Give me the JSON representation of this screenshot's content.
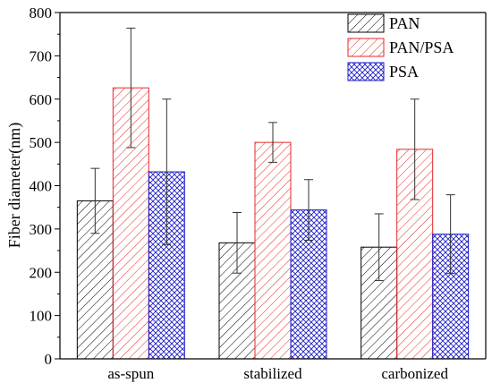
{
  "chart_data": {
    "type": "bar",
    "title": "",
    "xlabel": "",
    "ylabel": "Fiber diameter(nm)",
    "ylim": [
      0,
      800
    ],
    "yticks": [
      0,
      100,
      200,
      300,
      400,
      500,
      600,
      700,
      800
    ],
    "grid": false,
    "legend": "top-right",
    "categories": [
      "as-spun",
      "stabilized",
      "carbonized"
    ],
    "series": [
      {
        "name": "PAN",
        "values": [
          365,
          268,
          258
        ],
        "errors": [
          75,
          70,
          77
        ],
        "color": "#000000",
        "pattern": "diagonal-lines"
      },
      {
        "name": "PAN/PSA",
        "values": [
          626,
          500,
          484
        ],
        "errors": [
          138,
          46,
          116
        ],
        "color": "#e8262a",
        "pattern": "diagonal-lines"
      },
      {
        "name": "PSA",
        "values": [
          432,
          344,
          288
        ],
        "errors": [
          168,
          70,
          91
        ],
        "color": "#1f1fc8",
        "pattern": "crosshatch"
      }
    ]
  }
}
